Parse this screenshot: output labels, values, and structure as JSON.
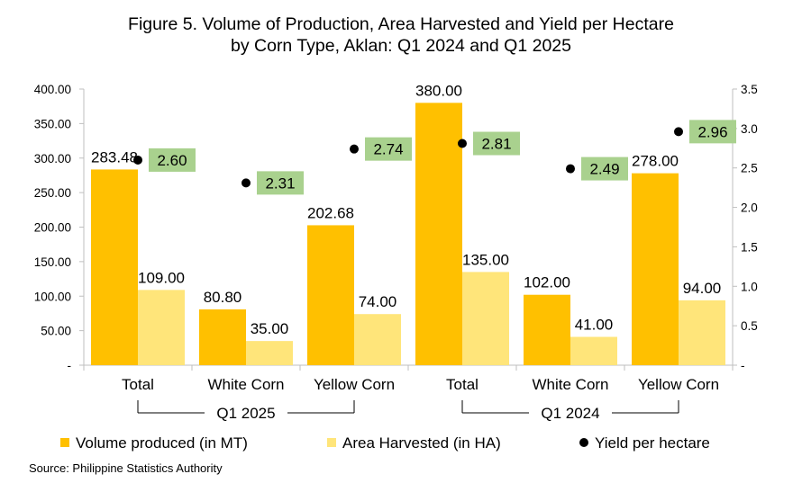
{
  "chart_data": {
    "type": "bar",
    "title_lines": [
      "Figure 5. Volume of Production, Area Harvested and Yield per Hectare",
      "by Corn Type, Aklan: Q1 2024 and Q1 2025"
    ],
    "categories": [
      "Total",
      "White Corn",
      "Yellow Corn",
      "Total",
      "White Corn",
      "Yellow Corn"
    ],
    "groups": [
      {
        "label": "Q1 2025",
        "categories": [
          0,
          1,
          2
        ]
      },
      {
        "label": "Q1 2024",
        "categories": [
          3,
          4,
          5
        ]
      }
    ],
    "series": [
      {
        "name": "Volume produced (in MT)",
        "type": "bar",
        "axis": "left",
        "color": "#FFC000",
        "values": [
          283.48,
          80.8,
          202.68,
          380.0,
          102.0,
          278.0
        ],
        "labels": [
          "283.48",
          "80.80",
          "202.68",
          "380.00",
          "102.00",
          "278.00"
        ]
      },
      {
        "name": "Area Harvested (in HA)",
        "type": "bar",
        "axis": "left",
        "color": "#FFE57A",
        "values": [
          109.0,
          35.0,
          74.0,
          135.0,
          41.0,
          94.0
        ],
        "labels": [
          "109.00",
          "35.00",
          "74.00",
          "135.00",
          "41.00",
          "94.00"
        ]
      },
      {
        "name": "Yield per hectare",
        "type": "scatter",
        "axis": "right",
        "color": "#000000",
        "label_bg": "#A9D18E",
        "values": [
          2.6,
          2.31,
          2.74,
          2.81,
          2.49,
          2.96
        ],
        "labels": [
          "2.60",
          "2.31",
          "2.74",
          "2.81",
          "2.49",
          "2.96"
        ]
      }
    ],
    "y_left": {
      "min": 0,
      "max": 400,
      "step": 50,
      "tick_labels": [
        "-",
        "50.00",
        "100.00",
        "150.00",
        "200.00",
        "250.00",
        "300.00",
        "350.00",
        "400.00"
      ]
    },
    "y_right": {
      "min": 0,
      "max": 3.5,
      "step": 0.5,
      "tick_labels": [
        "-",
        "0.5",
        "1.0",
        "1.5",
        "2.0",
        "2.5",
        "3.0",
        "3.5"
      ]
    },
    "grid": false,
    "legend_position": "bottom"
  },
  "source": "Source: Philippine Statistics Authority"
}
